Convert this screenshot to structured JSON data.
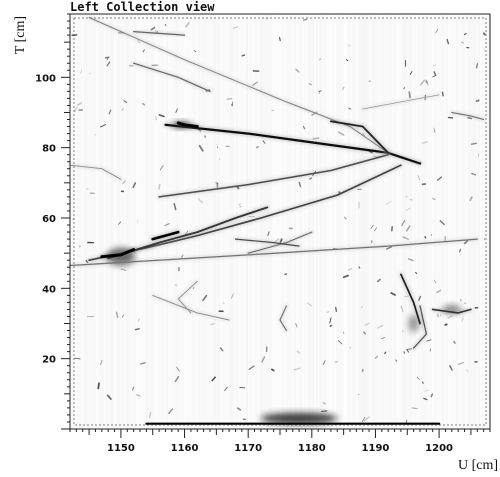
{
  "chart_data": {
    "type": "heatmap",
    "title": "Left Collection view",
    "xlabel": "U [cm]",
    "ylabel": "T [cm]",
    "xlim": [
      1142,
      1208
    ],
    "ylim": [
      0,
      118
    ],
    "x_ticks": [
      1150,
      1160,
      1170,
      1180,
      1190,
      1200
    ],
    "y_ticks": [
      20,
      40,
      60,
      80,
      100
    ],
    "grid": false,
    "colormap": "white-to-black",
    "tracks": [
      {
        "name": "",
        "points": [
          [
            1157,
            86.5
          ],
          [
            1170,
            84
          ],
          [
            1182,
            81
          ],
          [
            1192,
            78.5
          ],
          [
            1197,
            75.5
          ]
        ],
        "intensity": 0.95,
        "width": 2.2
      },
      {
        "name": "",
        "points": [
          [
            1142,
            46.5
          ],
          [
            1170,
            49.5
          ],
          [
            1192,
            52
          ],
          [
            1206,
            54
          ]
        ],
        "intensity": 0.55,
        "width": 1.3
      },
      {
        "name": "",
        "points": [
          [
            1145,
            48
          ],
          [
            1154,
            51.5
          ],
          [
            1162,
            55
          ],
          [
            1172,
            60
          ],
          [
            1184,
            66.5
          ],
          [
            1194,
            75
          ]
        ],
        "intensity": 0.75,
        "width": 1.6
      },
      {
        "name": "",
        "points": [
          [
            1156,
            66
          ],
          [
            1170,
            69.5
          ],
          [
            1183,
            73.5
          ],
          [
            1192,
            78
          ]
        ],
        "intensity": 0.7,
        "width": 1.5
      },
      {
        "name": "",
        "points": [
          [
            1145,
            117
          ],
          [
            1160,
            105
          ],
          [
            1176,
            93
          ],
          [
            1186,
            86
          ],
          [
            1192,
            78.5
          ]
        ],
        "intensity": 0.5,
        "width": 1.0
      },
      {
        "name": "",
        "points": [
          [
            1183,
            87.5
          ],
          [
            1188,
            86
          ],
          [
            1192,
            78.5
          ]
        ],
        "intensity": 0.85,
        "width": 1.8
      },
      {
        "name": "",
        "points": [
          [
            1148,
            48.5
          ],
          [
            1156,
            53
          ],
          [
            1162,
            56
          ],
          [
            1168,
            60
          ],
          [
            1173,
            63
          ]
        ],
        "intensity": 0.8,
        "width": 1.8
      },
      {
        "name": "",
        "points": [
          [
            1152,
            113
          ],
          [
            1160,
            112
          ]
        ],
        "intensity": 0.6,
        "width": 1.2
      },
      {
        "name": "",
        "points": [
          [
            1152,
            104
          ],
          [
            1159,
            100
          ],
          [
            1164,
            96
          ]
        ],
        "intensity": 0.6,
        "width": 1.2
      },
      {
        "name": "",
        "points": [
          [
            1170,
            50
          ],
          [
            1176,
            53
          ],
          [
            1180,
            56
          ]
        ],
        "intensity": 0.6,
        "width": 1.1
      },
      {
        "name": "",
        "points": [
          [
            1194,
            44
          ],
          [
            1196,
            36
          ],
          [
            1197,
            30
          ]
        ],
        "intensity": 0.9,
        "width": 1.6
      },
      {
        "name": "",
        "points": [
          [
            1197,
            35
          ],
          [
            1198,
            27
          ],
          [
            1196,
            23
          ]
        ],
        "intensity": 0.7,
        "width": 1.2
      },
      {
        "name": "",
        "points": [
          [
            1199,
            34
          ],
          [
            1203,
            33
          ],
          [
            1205,
            34
          ]
        ],
        "intensity": 0.8,
        "width": 1.6
      },
      {
        "name": "",
        "points": [
          [
            1159,
            87
          ],
          [
            1160,
            86.5
          ],
          [
            1162,
            86
          ]
        ],
        "intensity": 1.0,
        "width": 3.0
      },
      {
        "name": "",
        "points": [
          [
            1147,
            49
          ],
          [
            1150,
            49.5
          ],
          [
            1152,
            51
          ]
        ],
        "intensity": 1.0,
        "width": 3.0
      },
      {
        "name": "",
        "points": [
          [
            1155,
            54
          ],
          [
            1157,
            55
          ],
          [
            1159,
            56
          ]
        ],
        "intensity": 1.0,
        "width": 2.6
      },
      {
        "name": "",
        "points": [
          [
            1162,
            42
          ],
          [
            1159,
            37
          ],
          [
            1161,
            33
          ]
        ],
        "intensity": 0.45,
        "width": 0.9
      },
      {
        "name": "",
        "points": [
          [
            1155,
            38
          ],
          [
            1162,
            33
          ],
          [
            1167,
            31
          ]
        ],
        "intensity": 0.45,
        "width": 0.9
      },
      {
        "name": "",
        "points": [
          [
            1176,
            35
          ],
          [
            1175,
            31
          ],
          [
            1176,
            28
          ]
        ],
        "intensity": 0.6,
        "width": 1.0
      },
      {
        "name": "",
        "points": [
          [
            1188,
            91
          ],
          [
            1194,
            93
          ],
          [
            1200,
            95
          ]
        ],
        "intensity": 0.4,
        "width": 0.8
      },
      {
        "name": "",
        "points": [
          [
            1202,
            90
          ],
          [
            1205,
            89
          ],
          [
            1207,
            88
          ]
        ],
        "intensity": 0.6,
        "width": 1.0
      },
      {
        "name": "",
        "points": [
          [
            1142,
            75
          ],
          [
            1147,
            74
          ],
          [
            1150,
            71
          ]
        ],
        "intensity": 0.45,
        "width": 0.9
      },
      {
        "name": "",
        "points": [
          [
            1168,
            54
          ],
          [
            1174,
            53
          ],
          [
            1178,
            52
          ]
        ],
        "intensity": 0.7,
        "width": 1.2
      },
      {
        "name": "",
        "points": [
          [
            1154,
            1.5
          ],
          [
            1165,
            1.5
          ],
          [
            1180,
            1.5
          ],
          [
            1190,
            1.5
          ],
          [
            1200,
            1.5
          ]
        ],
        "intensity": 1.0,
        "width": 2.2
      }
    ],
    "blobs": [
      {
        "x": 1178,
        "y": 3,
        "rx": 6,
        "ry": 1.6,
        "intensity": 0.9
      },
      {
        "x": 1150,
        "y": 49,
        "rx": 2.2,
        "ry": 2.5,
        "intensity": 0.7
      },
      {
        "x": 1159.5,
        "y": 86.5,
        "rx": 1.5,
        "ry": 0.9,
        "intensity": 0.8
      },
      {
        "x": 1202,
        "y": 34,
        "rx": 1.5,
        "ry": 1.2,
        "intensity": 0.6
      },
      {
        "x": 1196,
        "y": 30,
        "rx": 0.8,
        "ry": 2.5,
        "intensity": 0.5
      }
    ]
  }
}
